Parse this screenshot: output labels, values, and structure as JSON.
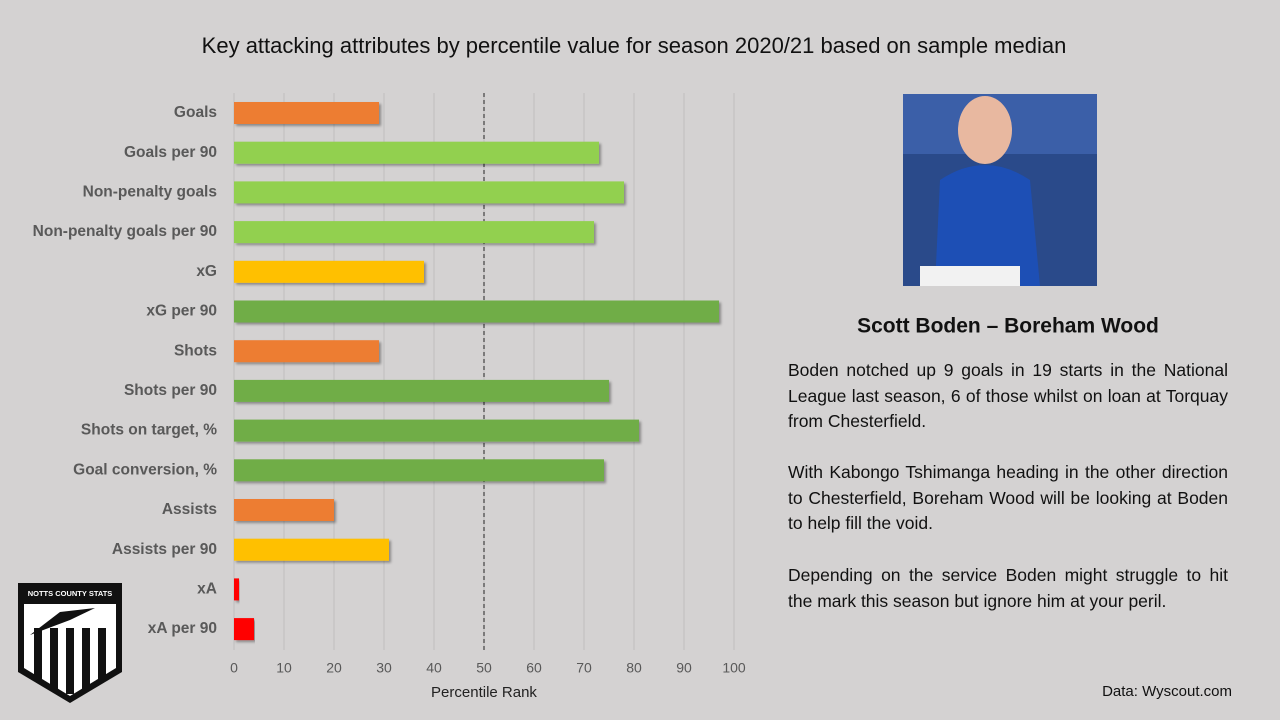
{
  "chart_data": {
    "type": "barh",
    "title": "Key attacking attributes by percentile value for season 2020/21 based on sample median",
    "categories": [
      "Goals",
      "Goals per 90",
      "Non-penalty goals",
      "Non-penalty goals per 90",
      "xG",
      "xG per 90",
      "Shots",
      "Shots per 90",
      "Shots on target, %",
      "Goal conversion, %",
      "Assists",
      "Assists per 90",
      "xA",
      "xA per 90"
    ],
    "values": [
      29,
      73,
      78,
      72,
      38,
      97,
      29,
      75,
      81,
      74,
      20,
      31,
      1,
      4
    ],
    "colors": [
      "#ed7d31",
      "#92d050",
      "#92d050",
      "#92d050",
      "#ffc000",
      "#70ad47",
      "#ed7d31",
      "#70ad47",
      "#70ad47",
      "#70ad47",
      "#ed7d31",
      "#ffc000",
      "#ff0000",
      "#ff0000"
    ],
    "xlim": [
      0,
      100
    ],
    "xticks": [
      0,
      10,
      20,
      30,
      40,
      50,
      60,
      70,
      80,
      90,
      100
    ],
    "xlabel": "Percentile Rank",
    "grid": true,
    "median_line": 50
  },
  "panel": {
    "heading": "Scott Boden – Boreham Wood",
    "paragraphs": [
      "Boden notched up 9 goals in 19 starts in the National League last season, 6 of those whilst on loan at Torquay from Chesterfield.",
      "With Kabongo Tshimanga heading in the other direction to Chesterfield, Boreham Wood will be looking at Boden to help fill the void.",
      "Depending on the service Boden might struggle to hit the mark this season but ignore him at your peril."
    ],
    "source": "Data: Wyscout.com",
    "logo": "NOTTS COUNTY STATS"
  }
}
